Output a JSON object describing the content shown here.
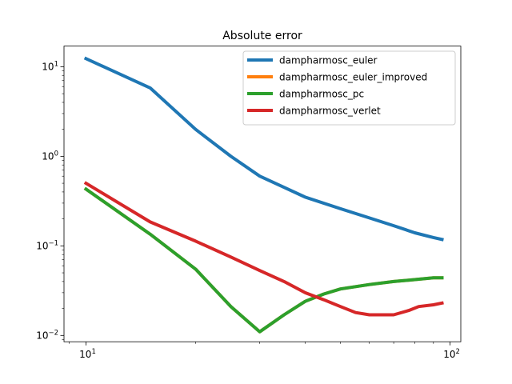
{
  "chart_data": {
    "type": "line",
    "title": "Absolute error",
    "xlabel": "",
    "ylabel": "",
    "xscale": "log",
    "yscale": "log",
    "xlim": [
      8.7,
      107
    ],
    "ylim": [
      0.0085,
      17
    ],
    "grid": false,
    "legend_position": "top-right",
    "x_ticks": [
      {
        "value": 10,
        "base": "10",
        "exp": "1"
      },
      {
        "value": 100,
        "base": "10",
        "exp": "2"
      }
    ],
    "y_ticks": [
      {
        "value": 10,
        "base": "10",
        "exp": "1"
      },
      {
        "value": 1,
        "base": "10",
        "exp": "0"
      },
      {
        "value": 0.1,
        "base": "10",
        "exp": "−1"
      },
      {
        "value": 0.01,
        "base": "10",
        "exp": "−2"
      }
    ],
    "series": [
      {
        "name": "dampharmosc_euler",
        "color": "#1f77b4",
        "x": [
          10,
          15,
          20,
          25,
          30,
          35,
          40,
          50,
          60,
          70,
          80,
          90,
          95
        ],
        "y": [
          12.3,
          5.8,
          2.0,
          1.0,
          0.6,
          0.45,
          0.35,
          0.26,
          0.205,
          0.168,
          0.14,
          0.124,
          0.118
        ]
      },
      {
        "name": "dampharmosc_euler_improved",
        "color": "#ff7f0e",
        "x": [
          10,
          15,
          20,
          25,
          30,
          35,
          40,
          45,
          50,
          60,
          70,
          80,
          90,
          95
        ],
        "y": [
          0.43,
          0.135,
          0.055,
          0.021,
          0.011,
          0.017,
          0.024,
          0.029,
          0.033,
          0.037,
          0.04,
          0.042,
          0.044,
          0.044
        ]
      },
      {
        "name": "dampharmosc_pc",
        "color": "#2ca02c",
        "x": [
          10,
          15,
          20,
          25,
          30,
          35,
          40,
          45,
          50,
          60,
          70,
          80,
          90,
          95
        ],
        "y": [
          0.43,
          0.135,
          0.055,
          0.021,
          0.011,
          0.017,
          0.024,
          0.029,
          0.033,
          0.037,
          0.04,
          0.042,
          0.044,
          0.044
        ]
      },
      {
        "name": "dampharmosc_verlet",
        "color": "#d62728",
        "x": [
          10,
          15,
          20,
          25,
          30,
          35,
          40,
          45,
          50,
          55,
          60,
          70,
          77,
          82,
          90,
          95
        ],
        "y": [
          0.5,
          0.185,
          0.113,
          0.075,
          0.053,
          0.04,
          0.03,
          0.025,
          0.021,
          0.018,
          0.017,
          0.017,
          0.019,
          0.021,
          0.022,
          0.023
        ]
      }
    ]
  }
}
